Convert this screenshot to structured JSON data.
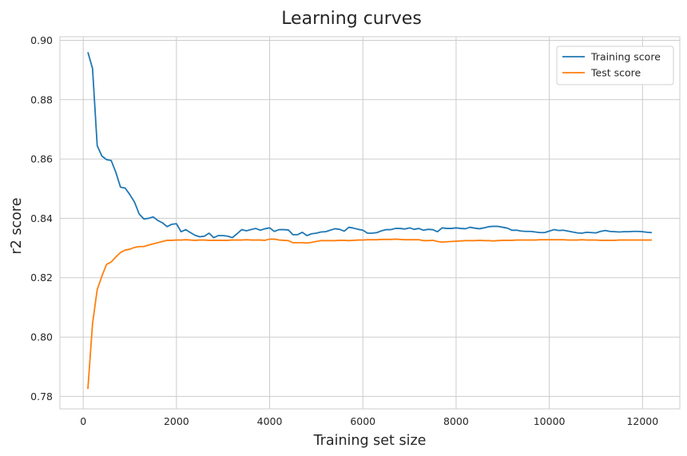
{
  "chart_data": {
    "type": "line",
    "title": "Learning curves",
    "xlabel": "Training set size",
    "ylabel": "r2 score",
    "xlim": [
      -500,
      12800
    ],
    "ylim": [
      0.7758,
      0.9012
    ],
    "xticks": [
      0,
      2000,
      4000,
      6000,
      8000,
      10000,
      12000
    ],
    "yticks": [
      0.78,
      0.8,
      0.82,
      0.84,
      0.86,
      0.88,
      0.9
    ],
    "xtick_labels": [
      "0",
      "2000",
      "4000",
      "6000",
      "8000",
      "10000",
      "12000"
    ],
    "ytick_labels": [
      "0.78",
      "0.80",
      "0.82",
      "0.84",
      "0.86",
      "0.88",
      "0.90"
    ],
    "grid": true,
    "legend_position": "top-right",
    "series": [
      {
        "name": "Training score",
        "color": "#1f77b4",
        "points": [
          [
            100,
            0.896
          ],
          [
            200,
            0.8905
          ],
          [
            300,
            0.8645
          ],
          [
            400,
            0.861
          ],
          [
            500,
            0.8598
          ],
          [
            600,
            0.8595
          ],
          [
            700,
            0.8555
          ],
          [
            800,
            0.8505
          ],
          [
            900,
            0.8502
          ],
          [
            1000,
            0.848
          ],
          [
            1100,
            0.8455
          ],
          [
            1200,
            0.8415
          ],
          [
            1300,
            0.8398
          ],
          [
            1400,
            0.84
          ],
          [
            1500,
            0.8405
          ],
          [
            1600,
            0.8393
          ],
          [
            1700,
            0.8385
          ],
          [
            1800,
            0.8372
          ],
          [
            1900,
            0.838
          ],
          [
            2000,
            0.8382
          ],
          [
            2100,
            0.8355
          ],
          [
            2200,
            0.8362
          ],
          [
            2300,
            0.8352
          ],
          [
            2400,
            0.8343
          ],
          [
            2500,
            0.8338
          ],
          [
            2600,
            0.834
          ],
          [
            2700,
            0.835
          ],
          [
            2800,
            0.8335
          ],
          [
            2900,
            0.8342
          ],
          [
            3000,
            0.8342
          ],
          [
            3100,
            0.834
          ],
          [
            3200,
            0.8335
          ],
          [
            3300,
            0.8348
          ],
          [
            3400,
            0.8362
          ],
          [
            3500,
            0.8358
          ],
          [
            3600,
            0.8362
          ],
          [
            3700,
            0.8366
          ],
          [
            3800,
            0.836
          ],
          [
            3900,
            0.8365
          ],
          [
            4000,
            0.8368
          ],
          [
            4100,
            0.8356
          ],
          [
            4200,
            0.8362
          ],
          [
            4300,
            0.8362
          ],
          [
            4400,
            0.8361
          ],
          [
            4500,
            0.8345
          ],
          [
            4600,
            0.8345
          ],
          [
            4700,
            0.8353
          ],
          [
            4800,
            0.8342
          ],
          [
            4900,
            0.8348
          ],
          [
            5000,
            0.835
          ],
          [
            5100,
            0.8354
          ],
          [
            5200,
            0.8355
          ],
          [
            5300,
            0.836
          ],
          [
            5400,
            0.8365
          ],
          [
            5500,
            0.8363
          ],
          [
            5600,
            0.8357
          ],
          [
            5700,
            0.837
          ],
          [
            5800,
            0.8367
          ],
          [
            5900,
            0.8363
          ],
          [
            6000,
            0.836
          ],
          [
            6100,
            0.835
          ],
          [
            6200,
            0.835
          ],
          [
            6300,
            0.8352
          ],
          [
            6400,
            0.8358
          ],
          [
            6500,
            0.8362
          ],
          [
            6600,
            0.8362
          ],
          [
            6700,
            0.8366
          ],
          [
            6800,
            0.8366
          ],
          [
            6900,
            0.8364
          ],
          [
            7000,
            0.8368
          ],
          [
            7100,
            0.8363
          ],
          [
            7200,
            0.8366
          ],
          [
            7300,
            0.836
          ],
          [
            7400,
            0.8363
          ],
          [
            7500,
            0.8362
          ],
          [
            7600,
            0.8355
          ],
          [
            7700,
            0.8368
          ],
          [
            7800,
            0.8366
          ],
          [
            7900,
            0.8366
          ],
          [
            8000,
            0.8368
          ],
          [
            8100,
            0.8366
          ],
          [
            8200,
            0.8365
          ],
          [
            8300,
            0.837
          ],
          [
            8400,
            0.8367
          ],
          [
            8500,
            0.8365
          ],
          [
            8600,
            0.8368
          ],
          [
            8700,
            0.8372
          ],
          [
            8800,
            0.8373
          ],
          [
            8900,
            0.8373
          ],
          [
            9000,
            0.837
          ],
          [
            9100,
            0.8367
          ],
          [
            9200,
            0.836
          ],
          [
            9300,
            0.836
          ],
          [
            9400,
            0.8357
          ],
          [
            9500,
            0.8356
          ],
          [
            9600,
            0.8356
          ],
          [
            9700,
            0.8354
          ],
          [
            9800,
            0.8352
          ],
          [
            9900,
            0.8352
          ],
          [
            10000,
            0.8357
          ],
          [
            10100,
            0.8362
          ],
          [
            10200,
            0.8359
          ],
          [
            10300,
            0.836
          ],
          [
            10400,
            0.8357
          ],
          [
            10500,
            0.8354
          ],
          [
            10600,
            0.8351
          ],
          [
            10700,
            0.835
          ],
          [
            10800,
            0.8353
          ],
          [
            10900,
            0.8352
          ],
          [
            11000,
            0.8351
          ],
          [
            11100,
            0.8356
          ],
          [
            11200,
            0.8359
          ],
          [
            11300,
            0.8356
          ],
          [
            11400,
            0.8355
          ],
          [
            11500,
            0.8354
          ],
          [
            11600,
            0.8355
          ],
          [
            11700,
            0.8355
          ],
          [
            11800,
            0.8356
          ],
          [
            11900,
            0.8356
          ],
          [
            12000,
            0.8355
          ],
          [
            12100,
            0.8353
          ],
          [
            12200,
            0.8352
          ]
        ]
      },
      {
        "name": "Test score",
        "color": "#ff7f0e",
        "points": [
          [
            100,
            0.7825
          ],
          [
            200,
            0.8045
          ],
          [
            300,
            0.816
          ],
          [
            400,
            0.8205
          ],
          [
            500,
            0.8245
          ],
          [
            600,
            0.8253
          ],
          [
            700,
            0.827
          ],
          [
            800,
            0.8285
          ],
          [
            900,
            0.8293
          ],
          [
            1000,
            0.8296
          ],
          [
            1100,
            0.8302
          ],
          [
            1200,
            0.8305
          ],
          [
            1300,
            0.8305
          ],
          [
            1400,
            0.831
          ],
          [
            1500,
            0.8314
          ],
          [
            1600,
            0.8318
          ],
          [
            1700,
            0.8322
          ],
          [
            1800,
            0.8326
          ],
          [
            1900,
            0.8326
          ],
          [
            2000,
            0.8327
          ],
          [
            2100,
            0.8327
          ],
          [
            2200,
            0.8328
          ],
          [
            2300,
            0.8327
          ],
          [
            2400,
            0.8326
          ],
          [
            2500,
            0.8327
          ],
          [
            2600,
            0.8327
          ],
          [
            2700,
            0.8326
          ],
          [
            2800,
            0.8326
          ],
          [
            2900,
            0.8326
          ],
          [
            3000,
            0.8326
          ],
          [
            3100,
            0.8326
          ],
          [
            3200,
            0.8327
          ],
          [
            3300,
            0.8327
          ],
          [
            3400,
            0.8327
          ],
          [
            3500,
            0.8328
          ],
          [
            3600,
            0.8327
          ],
          [
            3700,
            0.8327
          ],
          [
            3800,
            0.8327
          ],
          [
            3900,
            0.8326
          ],
          [
            4000,
            0.833
          ],
          [
            4100,
            0.833
          ],
          [
            4200,
            0.8327
          ],
          [
            4300,
            0.8326
          ],
          [
            4400,
            0.8325
          ],
          [
            4500,
            0.8318
          ],
          [
            4600,
            0.8318
          ],
          [
            4700,
            0.8318
          ],
          [
            4800,
            0.8317
          ],
          [
            4900,
            0.8319
          ],
          [
            5000,
            0.8322
          ],
          [
            5100,
            0.8325
          ],
          [
            5200,
            0.8325
          ],
          [
            5300,
            0.8325
          ],
          [
            5400,
            0.8325
          ],
          [
            5500,
            0.8326
          ],
          [
            5600,
            0.8326
          ],
          [
            5700,
            0.8325
          ],
          [
            5800,
            0.8326
          ],
          [
            5900,
            0.8327
          ],
          [
            6000,
            0.8327
          ],
          [
            6100,
            0.8328
          ],
          [
            6200,
            0.8328
          ],
          [
            6300,
            0.8328
          ],
          [
            6400,
            0.8329
          ],
          [
            6500,
            0.8329
          ],
          [
            6600,
            0.8329
          ],
          [
            6700,
            0.833
          ],
          [
            6800,
            0.8329
          ],
          [
            6900,
            0.8328
          ],
          [
            7000,
            0.8328
          ],
          [
            7100,
            0.8328
          ],
          [
            7200,
            0.8328
          ],
          [
            7300,
            0.8325
          ],
          [
            7400,
            0.8325
          ],
          [
            7500,
            0.8326
          ],
          [
            7600,
            0.8322
          ],
          [
            7700,
            0.832
          ],
          [
            7800,
            0.8321
          ],
          [
            7900,
            0.8322
          ],
          [
            8000,
            0.8323
          ],
          [
            8100,
            0.8324
          ],
          [
            8200,
            0.8325
          ],
          [
            8300,
            0.8325
          ],
          [
            8400,
            0.8325
          ],
          [
            8500,
            0.8326
          ],
          [
            8600,
            0.8325
          ],
          [
            8700,
            0.8325
          ],
          [
            8800,
            0.8324
          ],
          [
            8900,
            0.8325
          ],
          [
            9000,
            0.8326
          ],
          [
            9100,
            0.8326
          ],
          [
            9200,
            0.8326
          ],
          [
            9300,
            0.8327
          ],
          [
            9400,
            0.8327
          ],
          [
            9500,
            0.8327
          ],
          [
            9600,
            0.8327
          ],
          [
            9700,
            0.8327
          ],
          [
            9800,
            0.8328
          ],
          [
            9900,
            0.8328
          ],
          [
            10000,
            0.8328
          ],
          [
            10100,
            0.8328
          ],
          [
            10200,
            0.8328
          ],
          [
            10300,
            0.8328
          ],
          [
            10400,
            0.8327
          ],
          [
            10500,
            0.8327
          ],
          [
            10600,
            0.8327
          ],
          [
            10700,
            0.8328
          ],
          [
            10800,
            0.8327
          ],
          [
            10900,
            0.8327
          ],
          [
            11000,
            0.8327
          ],
          [
            11100,
            0.8326
          ],
          [
            11200,
            0.8326
          ],
          [
            11300,
            0.8326
          ],
          [
            11400,
            0.8326
          ],
          [
            11500,
            0.8327
          ],
          [
            11600,
            0.8327
          ],
          [
            11700,
            0.8327
          ],
          [
            11800,
            0.8327
          ],
          [
            11900,
            0.8327
          ],
          [
            12000,
            0.8327
          ],
          [
            12100,
            0.8327
          ],
          [
            12200,
            0.8327
          ]
        ]
      }
    ]
  }
}
